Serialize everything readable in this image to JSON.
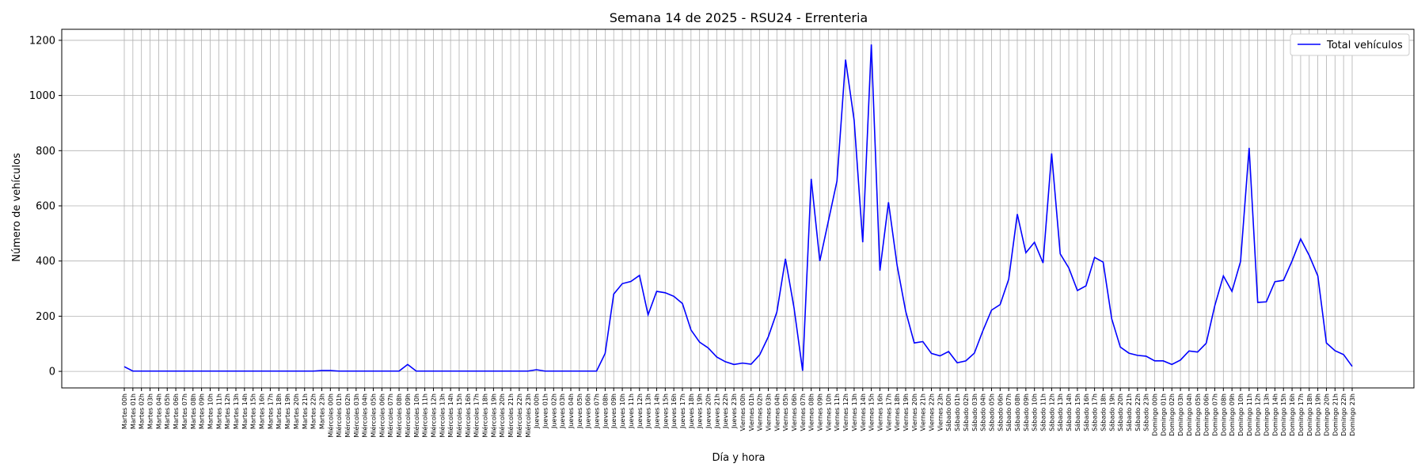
{
  "chart_data": {
    "type": "line",
    "title": "Semana 14 de 2025 - RSU24 - Errenteria",
    "xlabel": "Día y hora",
    "ylabel": "Número de vehículos",
    "ylim": [
      -60,
      1240
    ],
    "yticks": [
      0,
      200,
      400,
      600,
      800,
      1000,
      1200
    ],
    "grid": true,
    "legend_position": "top-right",
    "colors": {
      "series": "#0000ff",
      "grid": "#b0b0b0",
      "axes": "#000000"
    },
    "x": [
      "Martes 00h",
      "Martes 01h",
      "Martes 02h",
      "Martes 03h",
      "Martes 04h",
      "Martes 05h",
      "Martes 06h",
      "Martes 07h",
      "Martes 08h",
      "Martes 09h",
      "Martes 10h",
      "Martes 11h",
      "Martes 12h",
      "Martes 13h",
      "Martes 14h",
      "Martes 15h",
      "Martes 16h",
      "Martes 17h",
      "Martes 18h",
      "Martes 19h",
      "Martes 20h",
      "Martes 21h",
      "Martes 22h",
      "Martes 23h",
      "Miércoles 00h",
      "Miércoles 01h",
      "Miércoles 02h",
      "Miércoles 03h",
      "Miércoles 04h",
      "Miércoles 05h",
      "Miércoles 06h",
      "Miércoles 07h",
      "Miércoles 08h",
      "Miércoles 09h",
      "Miércoles 10h",
      "Miércoles 11h",
      "Miércoles 12h",
      "Miércoles 13h",
      "Miércoles 14h",
      "Miércoles 15h",
      "Miércoles 16h",
      "Miércoles 17h",
      "Miércoles 18h",
      "Miércoles 19h",
      "Miércoles 20h",
      "Miércoles 21h",
      "Miércoles 22h",
      "Miércoles 23h",
      "Jueves 00h",
      "Jueves 01h",
      "Jueves 02h",
      "Jueves 03h",
      "Jueves 04h",
      "Jueves 05h",
      "Jueves 06h",
      "Jueves 07h",
      "Jueves 08h",
      "Jueves 09h",
      "Jueves 10h",
      "Jueves 11h",
      "Jueves 12h",
      "Jueves 13h",
      "Jueves 14h",
      "Jueves 15h",
      "Jueves 16h",
      "Jueves 17h",
      "Jueves 18h",
      "Jueves 19h",
      "Jueves 20h",
      "Jueves 21h",
      "Jueves 22h",
      "Jueves 23h",
      "Viernes 00h",
      "Viernes 01h",
      "Viernes 02h",
      "Viernes 03h",
      "Viernes 04h",
      "Viernes 05h",
      "Viernes 06h",
      "Viernes 07h",
      "Viernes 08h",
      "Viernes 09h",
      "Viernes 10h",
      "Viernes 11h",
      "Viernes 12h",
      "Viernes 13h",
      "Viernes 14h",
      "Viernes 15h",
      "Viernes 16h",
      "Viernes 17h",
      "Viernes 18h",
      "Viernes 19h",
      "Viernes 20h",
      "Viernes 21h",
      "Viernes 22h",
      "Viernes 23h",
      "Sábado 00h",
      "Sábado 01h",
      "Sábado 02h",
      "Sábado 03h",
      "Sábado 04h",
      "Sábado 05h",
      "Sábado 06h",
      "Sábado 07h",
      "Sábado 08h",
      "Sábado 09h",
      "Sábado 10h",
      "Sábado 11h",
      "Sábado 12h",
      "Sábado 13h",
      "Sábado 14h",
      "Sábado 15h",
      "Sábado 16h",
      "Sábado 17h",
      "Sábado 18h",
      "Sábado 19h",
      "Sábado 20h",
      "Sábado 21h",
      "Sábado 22h",
      "Sábado 23h",
      "Domingo 00h",
      "Domingo 01h",
      "Domingo 02h",
      "Domingo 03h",
      "Domingo 04h",
      "Domingo 05h",
      "Domingo 06h",
      "Domingo 07h",
      "Domingo 08h",
      "Domingo 09h",
      "Domingo 10h",
      "Domingo 11h",
      "Domingo 12h",
      "Domingo 13h",
      "Domingo 14h",
      "Domingo 15h",
      "Domingo 16h",
      "Domingo 17h",
      "Domingo 18h",
      "Domingo 19h",
      "Domingo 20h",
      "Domingo 21h",
      "Domingo 22h",
      "Domingo 23h"
    ],
    "series": [
      {
        "name": "Total vehículos",
        "values": [
          17,
          1,
          1,
          1,
          1,
          1,
          1,
          1,
          1,
          1,
          1,
          1,
          1,
          1,
          1,
          1,
          1,
          1,
          1,
          1,
          1,
          1,
          1,
          3,
          3,
          1,
          1,
          1,
          1,
          1,
          1,
          1,
          1,
          25,
          1,
          1,
          1,
          1,
          1,
          1,
          1,
          1,
          1,
          1,
          1,
          1,
          1,
          1,
          6,
          1,
          1,
          1,
          1,
          1,
          1,
          1,
          65,
          280,
          318,
          326,
          348,
          205,
          290,
          285,
          272,
          246,
          150,
          106,
          85,
          52,
          35,
          25,
          30,
          26,
          60,
          125,
          215,
          408,
          230,
          2,
          698,
          400,
          545,
          690,
          1130,
          910,
          468,
          1185,
          365,
          613,
          385,
          218,
          103,
          108,
          65,
          56,
          72,
          31,
          38,
          66,
          148,
          222,
          242,
          334,
          570,
          430,
          468,
          393,
          790,
          426,
          375,
          293,
          310,
          413,
          396,
          190,
          88,
          66,
          58,
          55,
          38,
          38,
          25,
          41,
          74,
          70,
          102,
          238,
          346,
          290,
          398,
          810,
          250,
          252,
          325,
          330,
          400,
          480,
          420,
          346,
          103,
          75,
          61,
          18
        ]
      }
    ]
  }
}
